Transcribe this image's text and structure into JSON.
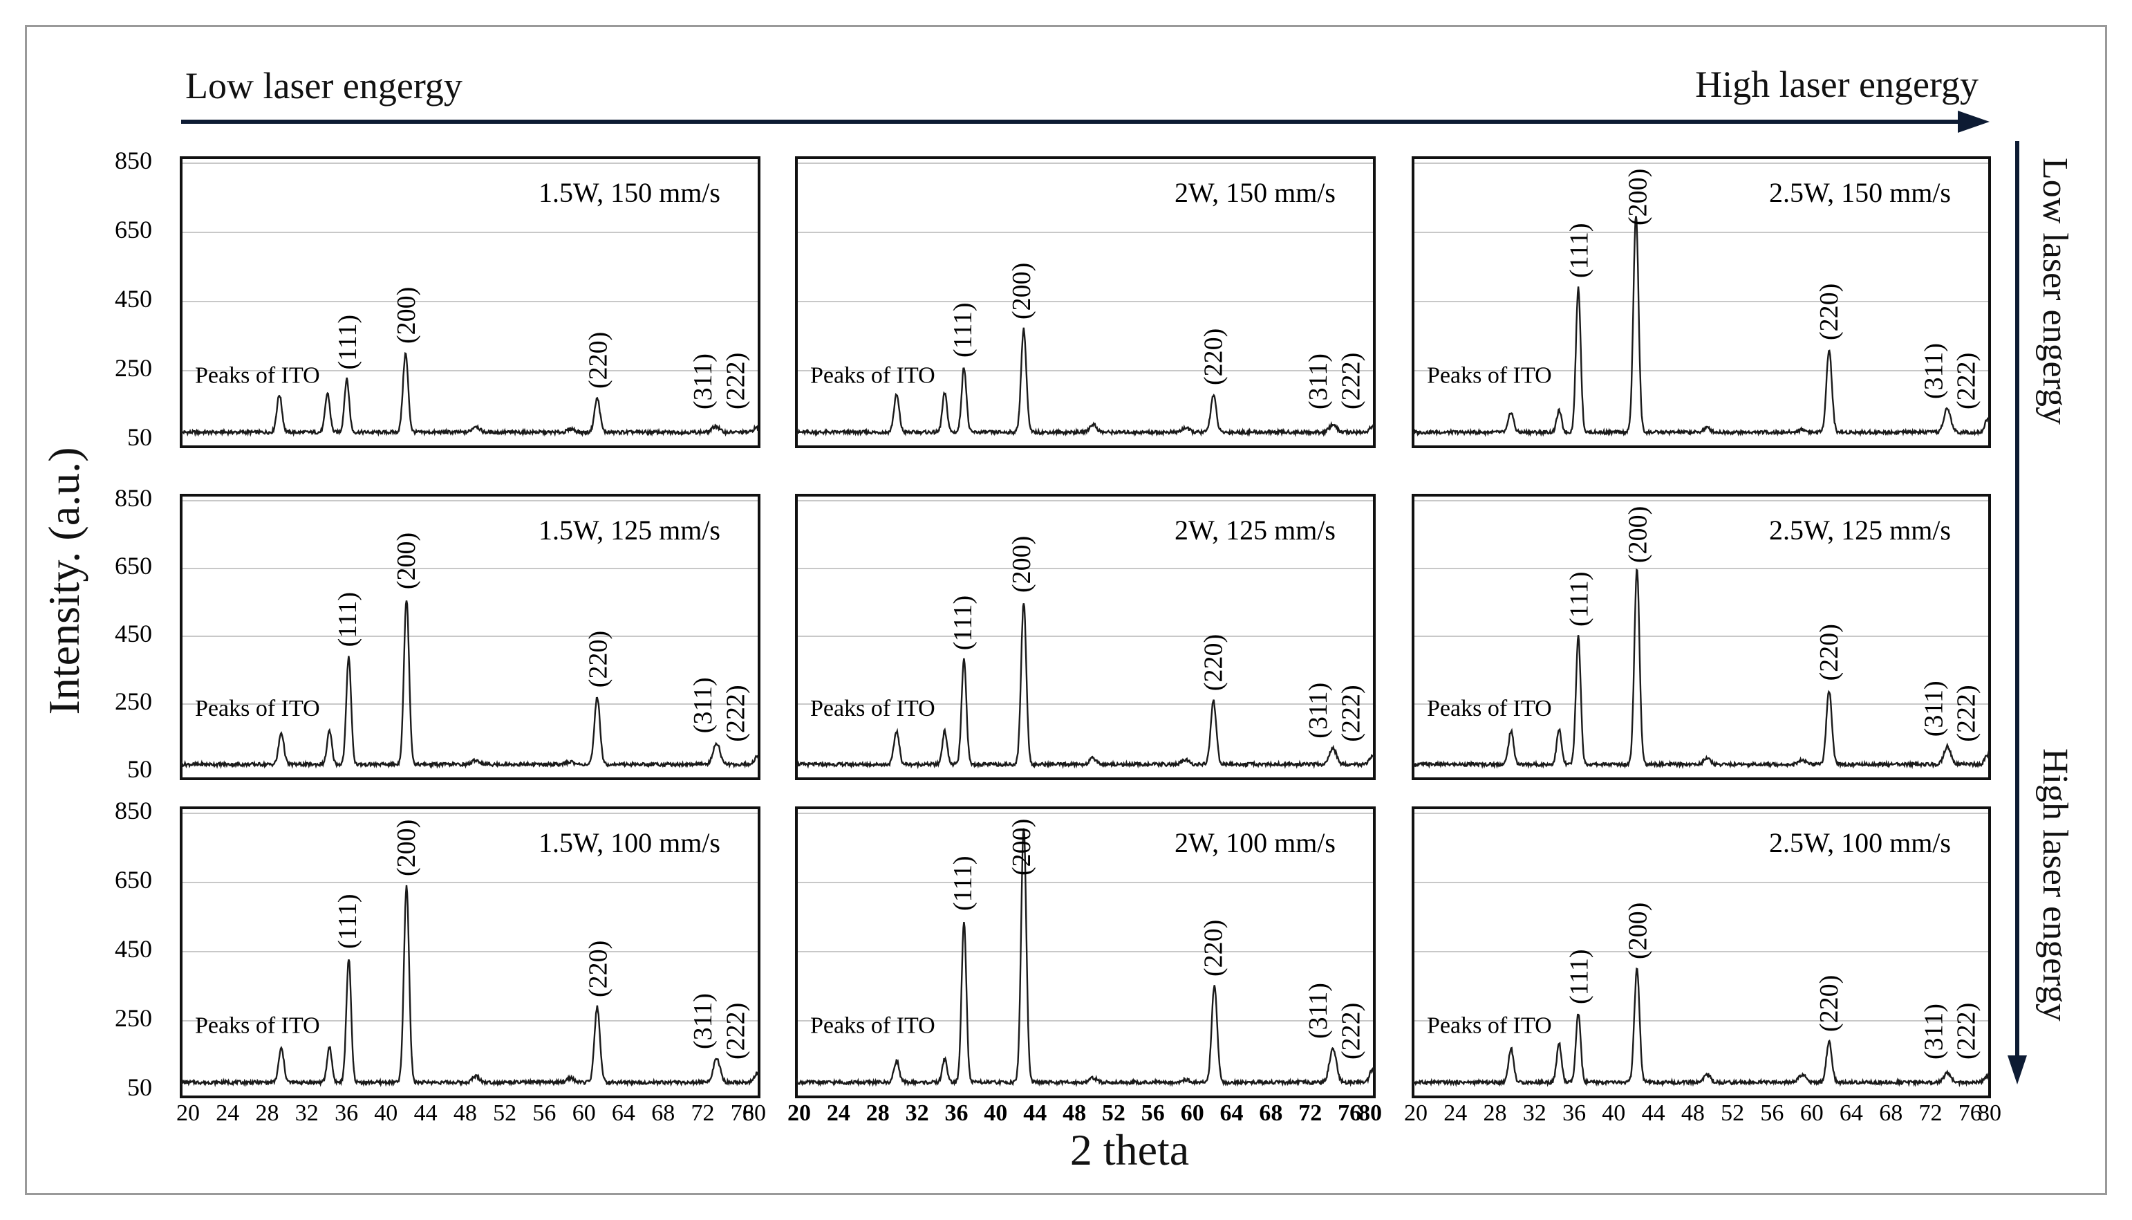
{
  "top_arrow": {
    "left_label": "Low laser engergy",
    "right_label": "High laser engergy"
  },
  "right_arrow": {
    "top_label": "Low laser engergy",
    "bottom_label": "High laser engergy"
  },
  "x_axis_title": "2 theta",
  "y_axis_title": "Intensity.  (a.u.)",
  "y_ticks": [
    "850",
    "650",
    "450",
    "250",
    "50"
  ],
  "x_ticks": [
    "20",
    "24",
    "28",
    "32",
    "36",
    "40",
    "44",
    "48",
    "52",
    "56",
    "60",
    "64",
    "68",
    "72",
    "76",
    "80"
  ],
  "colors": {
    "line": "#1a1a1a",
    "grid": "#c8c8c8",
    "axis_arrow": "#0d1b33",
    "frame": "#999999"
  },
  "chart_data": [
    {
      "type": "line",
      "title": "1.5W, 150  mm/s",
      "xlabel": "2 theta",
      "ylabel": "Intensity.  (a.u.)",
      "xlim": [
        20,
        80
      ],
      "ylim": [
        50,
        850
      ],
      "grid": true,
      "annotations": [
        "Peaks of ITO",
        "(111)",
        "(200)",
        "(220)",
        "(311)",
        "(222)"
      ],
      "peaks": [
        {
          "x": 30.2,
          "y": 180,
          "w": 0.38
        },
        {
          "x": 35.2,
          "y": 185,
          "w": 0.35
        },
        {
          "x": 37.2,
          "y": 225,
          "w": 0.35
        },
        {
          "x": 43.3,
          "y": 300,
          "w": 0.38
        },
        {
          "x": 50.6,
          "y": 90,
          "w": 0.5
        },
        {
          "x": 60.5,
          "y": 82,
          "w": 0.5
        },
        {
          "x": 63.2,
          "y": 170,
          "w": 0.4
        },
        {
          "x": 75.5,
          "y": 90,
          "w": 0.5
        },
        {
          "x": 79.7,
          "y": 85,
          "w": 0.4
        }
      ]
    },
    {
      "type": "line",
      "title": "2W, 150  mm/s",
      "xlabel": "2 theta",
      "ylabel": "Intensity.  (a.u.)",
      "xlim": [
        20,
        80
      ],
      "ylim": [
        50,
        850
      ],
      "grid": true,
      "annotations": [
        "Peaks of ITO",
        "(111)",
        "(200)",
        "(220)",
        "(311)",
        "(222)"
      ],
      "peaks": [
        {
          "x": 30.4,
          "y": 180,
          "w": 0.38
        },
        {
          "x": 35.4,
          "y": 185,
          "w": 0.35
        },
        {
          "x": 37.4,
          "y": 260,
          "w": 0.35
        },
        {
          "x": 43.6,
          "y": 370,
          "w": 0.38
        },
        {
          "x": 50.8,
          "y": 95,
          "w": 0.5
        },
        {
          "x": 60.4,
          "y": 85,
          "w": 0.5
        },
        {
          "x": 63.3,
          "y": 180,
          "w": 0.4
        },
        {
          "x": 75.7,
          "y": 95,
          "w": 0.5
        },
        {
          "x": 79.8,
          "y": 88,
          "w": 0.4
        }
      ]
    },
    {
      "type": "line",
      "title": "2.5W, 150  mm/s",
      "xlabel": "2 theta",
      "ylabel": "Intensity.  (a.u.)",
      "xlim": [
        20,
        80
      ],
      "ylim": [
        50,
        850
      ],
      "grid": true,
      "annotations": [
        "Peaks of ITO",
        "(111)",
        "(200)",
        "(220)",
        "(311)",
        "(222)"
      ],
      "peaks": [
        {
          "x": 30.2,
          "y": 130,
          "w": 0.38
        },
        {
          "x": 35.2,
          "y": 135,
          "w": 0.35
        },
        {
          "x": 37.2,
          "y": 490,
          "w": 0.35
        },
        {
          "x": 43.2,
          "y": 700,
          "w": 0.38
        },
        {
          "x": 50.6,
          "y": 85,
          "w": 0.5
        },
        {
          "x": 60.5,
          "y": 80,
          "w": 0.5
        },
        {
          "x": 63.3,
          "y": 310,
          "w": 0.4
        },
        {
          "x": 75.6,
          "y": 140,
          "w": 0.5
        },
        {
          "x": 79.8,
          "y": 110,
          "w": 0.4
        }
      ]
    },
    {
      "type": "line",
      "title": "1.5W, 125  mm/s",
      "xlabel": "2 theta",
      "ylabel": "Intensity.  (a.u.)",
      "xlim": [
        20,
        80
      ],
      "ylim": [
        50,
        850
      ],
      "grid": true,
      "annotations": [
        "Peaks of ITO",
        "(111)",
        "(200)",
        "(220)",
        "(311)",
        "(222)"
      ],
      "peaks": [
        {
          "x": 30.4,
          "y": 165,
          "w": 0.38
        },
        {
          "x": 35.4,
          "y": 170,
          "w": 0.35
        },
        {
          "x": 37.4,
          "y": 390,
          "w": 0.35
        },
        {
          "x": 43.4,
          "y": 560,
          "w": 0.38
        },
        {
          "x": 50.6,
          "y": 85,
          "w": 0.5
        },
        {
          "x": 60.4,
          "y": 80,
          "w": 0.5
        },
        {
          "x": 63.2,
          "y": 270,
          "w": 0.4
        },
        {
          "x": 75.6,
          "y": 135,
          "w": 0.5
        },
        {
          "x": 79.8,
          "y": 95,
          "w": 0.4
        }
      ]
    },
    {
      "type": "line",
      "title": "2W, 125  mm/s",
      "xlabel": "2 theta",
      "ylabel": "Intensity.  (a.u.)",
      "xlim": [
        20,
        80
      ],
      "ylim": [
        50,
        850
      ],
      "grid": true,
      "annotations": [
        "Peaks of ITO",
        "(111)",
        "(200)",
        "(220)",
        "(311)",
        "(222)"
      ],
      "peaks": [
        {
          "x": 30.4,
          "y": 170,
          "w": 0.38
        },
        {
          "x": 35.4,
          "y": 170,
          "w": 0.35
        },
        {
          "x": 37.4,
          "y": 380,
          "w": 0.35
        },
        {
          "x": 43.6,
          "y": 550,
          "w": 0.38
        },
        {
          "x": 50.8,
          "y": 90,
          "w": 0.5
        },
        {
          "x": 60.4,
          "y": 85,
          "w": 0.5
        },
        {
          "x": 63.3,
          "y": 260,
          "w": 0.4
        },
        {
          "x": 75.7,
          "y": 120,
          "w": 0.5
        },
        {
          "x": 79.8,
          "y": 95,
          "w": 0.4
        }
      ]
    },
    {
      "type": "line",
      "title": "2.5W, 125  mm/s",
      "xlabel": "2 theta",
      "ylabel": "Intensity.  (a.u.)",
      "xlim": [
        20,
        80
      ],
      "ylim": [
        50,
        850
      ],
      "grid": true,
      "annotations": [
        "Peaks of ITO",
        "(111)",
        "(200)",
        "(220)",
        "(311)",
        "(222)"
      ],
      "peaks": [
        {
          "x": 30.2,
          "y": 170,
          "w": 0.38
        },
        {
          "x": 35.2,
          "y": 175,
          "w": 0.35
        },
        {
          "x": 37.2,
          "y": 450,
          "w": 0.35
        },
        {
          "x": 43.3,
          "y": 650,
          "w": 0.38
        },
        {
          "x": 50.6,
          "y": 90,
          "w": 0.5
        },
        {
          "x": 60.5,
          "y": 85,
          "w": 0.5
        },
        {
          "x": 63.3,
          "y": 290,
          "w": 0.4
        },
        {
          "x": 75.6,
          "y": 125,
          "w": 0.5
        },
        {
          "x": 79.8,
          "y": 100,
          "w": 0.4
        }
      ]
    },
    {
      "type": "line",
      "title": "1.5W, 100  mm/s",
      "xlabel": "2 theta",
      "ylabel": "Intensity.  (a.u.)",
      "xlim": [
        20,
        80
      ],
      "ylim": [
        50,
        850
      ],
      "grid": true,
      "annotations": [
        "Peaks of ITO",
        "(111)",
        "(200)",
        "(220)",
        "(311)",
        "(222)"
      ],
      "peaks": [
        {
          "x": 30.4,
          "y": 170,
          "w": 0.38
        },
        {
          "x": 35.4,
          "y": 175,
          "w": 0.35
        },
        {
          "x": 37.4,
          "y": 430,
          "w": 0.35
        },
        {
          "x": 43.4,
          "y": 640,
          "w": 0.38
        },
        {
          "x": 50.6,
          "y": 90,
          "w": 0.5
        },
        {
          "x": 60.4,
          "y": 85,
          "w": 0.5
        },
        {
          "x": 63.2,
          "y": 290,
          "w": 0.4
        },
        {
          "x": 75.6,
          "y": 140,
          "w": 0.5
        },
        {
          "x": 79.8,
          "y": 100,
          "w": 0.4
        }
      ]
    },
    {
      "type": "line",
      "title": "2W, 100  mm/s",
      "xlabel": "2 theta",
      "ylabel": "Intensity.  (a.u.)",
      "xlim": [
        20,
        80
      ],
      "ylim": [
        50,
        850
      ],
      "grid": true,
      "annotations": [
        "Peaks of ITO",
        "(111)",
        "(200)",
        "(220)",
        "(311)",
        "(222)"
      ],
      "peaks": [
        {
          "x": 30.4,
          "y": 135,
          "w": 0.38
        },
        {
          "x": 35.4,
          "y": 140,
          "w": 0.35
        },
        {
          "x": 37.4,
          "y": 540,
          "w": 0.35
        },
        {
          "x": 43.6,
          "y": 810,
          "w": 0.38
        },
        {
          "x": 50.8,
          "y": 85,
          "w": 0.5
        },
        {
          "x": 60.4,
          "y": 80,
          "w": 0.5
        },
        {
          "x": 63.4,
          "y": 350,
          "w": 0.4
        },
        {
          "x": 75.7,
          "y": 170,
          "w": 0.5
        },
        {
          "x": 79.8,
          "y": 110,
          "w": 0.4
        }
      ]
    },
    {
      "type": "line",
      "title": "2.5W, 100  mm/s",
      "xlabel": "2 theta",
      "ylabel": "Intensity.  (a.u.)",
      "xlim": [
        20,
        80
      ],
      "ylim": [
        50,
        850
      ],
      "grid": true,
      "annotations": [
        "Peaks of ITO",
        "(111)",
        "(200)",
        "(220)",
        "(311)",
        "(222)"
      ],
      "peaks": [
        {
          "x": 30.2,
          "y": 170,
          "w": 0.38
        },
        {
          "x": 35.2,
          "y": 185,
          "w": 0.35
        },
        {
          "x": 37.2,
          "y": 270,
          "w": 0.35
        },
        {
          "x": 43.3,
          "y": 400,
          "w": 0.38
        },
        {
          "x": 50.6,
          "y": 95,
          "w": 0.5
        },
        {
          "x": 60.5,
          "y": 95,
          "w": 0.5
        },
        {
          "x": 63.3,
          "y": 190,
          "w": 0.4
        },
        {
          "x": 75.6,
          "y": 100,
          "w": 0.5
        },
        {
          "x": 79.8,
          "y": 90,
          "w": 0.4
        }
      ]
    }
  ]
}
